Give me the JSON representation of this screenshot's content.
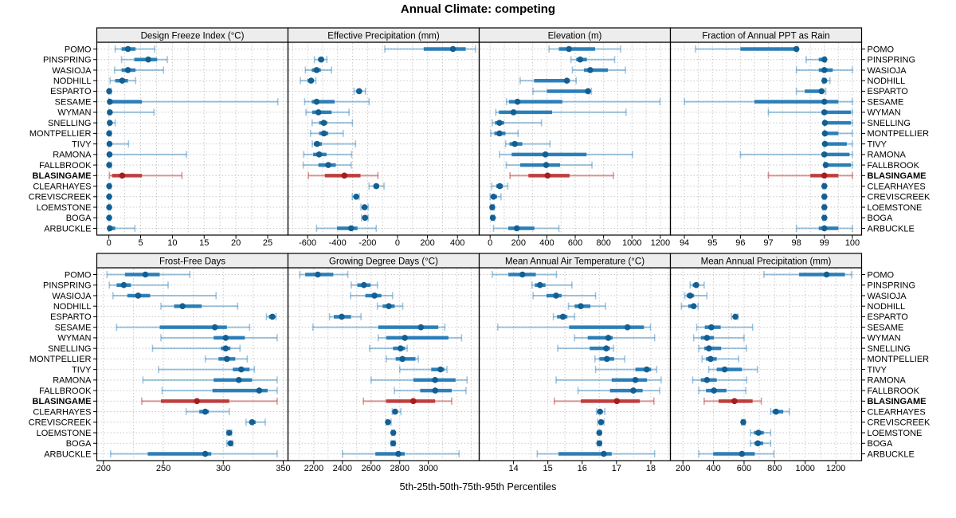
{
  "title": "Annual Climate: competing",
  "xlabel": "5th-25th-50th-75th-95th Percentiles",
  "colors": {
    "series": "#1f77b4",
    "series_dot": "#135f92",
    "series_light": "rgba(31,119,180,0.42)",
    "highlight": "#bb3434",
    "highlight_dot": "#a61d1d",
    "highlight_light": "rgba(187,52,52,0.5)",
    "strip_bg": "#ededed",
    "grid": "#c9c9c9",
    "border": "#000000"
  },
  "chart_data": {
    "type": "trellis-percentile-dotplot",
    "percentiles": [
      "5th",
      "25th",
      "50th",
      "75th",
      "95th"
    ],
    "highlight_site": "BLASINGAME",
    "sites": [
      "POMO",
      "PINSPRING",
      "WASIOJA",
      "NODHILL",
      "ESPARTO",
      "SESAME",
      "WYMAN",
      "SNELLING",
      "MONTPELLIER",
      "TIVY",
      "RAMONA",
      "FALLBROOK",
      "BLASINGAME",
      "CLEARHAYES",
      "CREVISCREEK",
      "LOEMSTONE",
      "BOGA",
      "ARBUCKLE"
    ],
    "panels": [
      {
        "title": "Design Freeze Index (°C)",
        "xlim": [
          -1.9,
          28.2
        ],
        "ticks": [
          0,
          5,
          10,
          15,
          20,
          25
        ],
        "minor_step": 2.5,
        "values": [
          [
            1,
            2,
            3,
            4.2,
            7.2
          ],
          [
            2,
            4,
            6.2,
            7.6,
            9.2
          ],
          [
            0.9,
            2,
            3,
            4.2,
            8.6
          ],
          [
            0.2,
            1,
            2.1,
            3,
            4.2
          ],
          [
            0,
            0,
            0.05,
            0.15,
            0.35
          ],
          [
            0,
            0.05,
            0.15,
            5.2,
            26.6
          ],
          [
            0,
            0.05,
            0.15,
            0.4,
            7.1
          ],
          [
            0,
            0.05,
            0.15,
            0.35,
            1.0
          ],
          [
            0,
            0,
            0.05,
            0.15,
            0.35
          ],
          [
            0,
            0.05,
            0.1,
            0.3,
            3.1
          ],
          [
            0,
            0.05,
            0.1,
            0.4,
            12.2
          ],
          [
            0,
            0,
            0.05,
            0.15,
            0.4
          ],
          [
            0.1,
            0.5,
            2.1,
            5.2,
            11.5
          ],
          [
            0,
            0,
            0.05,
            0.1,
            0.3
          ],
          [
            0,
            0,
            0.05,
            0.1,
            0.25
          ],
          [
            0,
            0,
            0.05,
            0.1,
            0.25
          ],
          [
            0,
            0,
            0.05,
            0.1,
            0.25
          ],
          [
            0,
            0.05,
            0.15,
            1.0,
            4.1
          ]
        ]
      },
      {
        "title": "Effective Precipitation (mm)",
        "xlim": [
          -731,
          545
        ],
        "ticks": [
          -600,
          -400,
          -200,
          0,
          200,
          400
        ],
        "minor_step": 100,
        "values": [
          [
            -85,
            175,
            370,
            455,
            520
          ],
          [
            -555,
            -530,
            -510,
            -490,
            -472
          ],
          [
            -615,
            -572,
            -540,
            -512,
            -440
          ],
          [
            -648,
            -601,
            -577,
            -558,
            -545
          ],
          [
            -290,
            -274,
            -256,
            -239,
            -214
          ],
          [
            -620,
            -572,
            -540,
            -420,
            -190
          ],
          [
            -611,
            -569,
            -528,
            -440,
            -324
          ],
          [
            -570,
            -523,
            -492,
            -469,
            -301
          ],
          [
            -581,
            -523,
            -491,
            -462,
            -363
          ],
          [
            -569,
            -558,
            -537,
            -505,
            -280
          ],
          [
            -626,
            -563,
            -523,
            -474,
            -306
          ],
          [
            -629,
            -528,
            -462,
            -412,
            -309
          ],
          [
            -595,
            -485,
            -355,
            -247,
            -131
          ],
          [
            -190,
            -160,
            -142,
            -123,
            -90
          ],
          [
            -302,
            -285,
            -276,
            -265,
            -256
          ],
          [
            -244,
            -228,
            -220,
            -210,
            -196
          ],
          [
            -240,
            -227,
            -217,
            -207,
            -196
          ],
          [
            -540,
            -404,
            -310,
            -267,
            -142
          ]
        ]
      },
      {
        "title": "Elevation (m)",
        "xlim": [
          -77,
          1271
        ],
        "ticks": [
          0,
          200,
          400,
          600,
          800,
          1000,
          1200
        ],
        "minor_step": 100,
        "values": [
          [
            415,
            485,
            556,
            740,
            920
          ],
          [
            570,
            607,
            635,
            682,
            878
          ],
          [
            580,
            662,
            706,
            830,
            954
          ],
          [
            212,
            310,
            541,
            562,
            607
          ],
          [
            302,
            400,
            690,
            701,
            714
          ],
          [
            115,
            133,
            193,
            509,
            1198
          ],
          [
            40,
            62,
            165,
            437,
            958
          ],
          [
            15,
            34,
            66,
            99,
            362
          ],
          [
            5,
            30,
            66,
            108,
            197
          ],
          [
            109,
            137,
            174,
            227,
            422
          ],
          [
            66,
            152,
            390,
            680,
            1003
          ],
          [
            114,
            212,
            395,
            493,
            718
          ],
          [
            140,
            270,
            405,
            560,
            869
          ],
          [
            11,
            43,
            68,
            90,
            124
          ],
          [
            0,
            6,
            24,
            49,
            77
          ],
          [
            5,
            10,
            15,
            20,
            28
          ],
          [
            8,
            14,
            19,
            24,
            30
          ],
          [
            24,
            128,
            188,
            312,
            485
          ]
        ]
      },
      {
        "title": "Fraction of Annual PPT as Rain",
        "xlim": [
          93.5,
          100.33
        ],
        "ticks": [
          94,
          95,
          96,
          97,
          98,
          99,
          100
        ],
        "minor_step": 0.5,
        "values": [
          [
            94.4,
            96,
            98,
            98,
            98.05
          ],
          [
            98.35,
            98.8,
            99,
            99,
            99.05
          ],
          [
            98,
            98.8,
            99,
            99.3,
            100
          ],
          [
            98.95,
            99,
            99,
            99.05,
            99.2
          ],
          [
            98,
            98.3,
            98.9,
            99,
            99.05
          ],
          [
            94,
            96.5,
            99,
            99.5,
            100
          ],
          [
            97,
            98.9,
            99,
            99.95,
            100
          ],
          [
            99,
            99,
            99.02,
            99.95,
            100
          ],
          [
            99,
            99,
            99.02,
            99.5,
            100
          ],
          [
            99,
            99,
            99.02,
            99.8,
            100
          ],
          [
            96,
            98.9,
            99,
            99.9,
            100
          ],
          [
            99,
            99,
            99.05,
            99.95,
            100
          ],
          [
            97,
            98.5,
            99,
            99.5,
            100
          ],
          [
            98.95,
            99,
            99,
            99,
            99.05
          ],
          [
            98.95,
            99,
            99,
            99,
            99.05
          ],
          [
            98.95,
            99,
            99,
            99,
            99.05
          ],
          [
            98.95,
            99,
            99,
            99,
            99.05
          ],
          [
            98,
            98.8,
            99,
            99.5,
            100
          ]
        ]
      },
      {
        "title": "Frost-Free Days",
        "xlim": [
          194.5,
          354
        ],
        "ticks": [
          200,
          250,
          300,
          350
        ],
        "minor_step": 25,
        "values": [
          [
            203,
            218,
            235,
            247,
            272
          ],
          [
            205,
            211,
            217,
            223,
            254
          ],
          [
            208,
            220,
            229,
            239,
            294
          ],
          [
            248,
            259,
            266,
            282,
            312
          ],
          [
            336,
            338,
            341,
            343,
            344
          ],
          [
            211,
            247,
            293,
            303,
            322
          ],
          [
            248,
            292,
            302,
            318,
            345
          ],
          [
            241,
            298,
            302,
            306,
            314
          ],
          [
            285,
            296,
            303,
            310,
            320
          ],
          [
            246,
            308,
            315,
            322,
            326
          ],
          [
            233,
            292,
            313,
            324,
            345
          ],
          [
            249,
            291,
            330,
            337,
            345
          ],
          [
            232,
            248,
            278,
            305,
            345
          ],
          [
            269,
            280,
            285,
            288,
            305
          ],
          [
            319,
            322,
            324,
            327,
            335
          ],
          [
            303,
            304,
            305,
            306,
            307
          ],
          [
            303,
            305,
            306,
            307,
            308
          ],
          [
            206,
            237,
            285,
            290,
            345
          ]
        ]
      },
      {
        "title": "Growing Degree Days (°C)",
        "xlim": [
          2020,
          3355
        ],
        "ticks": [
          2200,
          2400,
          2600,
          2800,
          3000
        ],
        "minor_step": 100,
        "values": [
          [
            2103,
            2140,
            2228,
            2336,
            2438
          ],
          [
            2462,
            2504,
            2550,
            2597,
            2644
          ],
          [
            2457,
            2560,
            2624,
            2672,
            2750
          ],
          [
            2644,
            2681,
            2724,
            2765,
            2821
          ],
          [
            2310,
            2340,
            2395,
            2460,
            2530
          ],
          [
            2194,
            2650,
            2948,
            3069,
            3115
          ],
          [
            2650,
            2706,
            2836,
            3140,
            3232
          ],
          [
            2590,
            2753,
            2806,
            2838,
            2852
          ],
          [
            2706,
            2772,
            2819,
            2910,
            2930
          ],
          [
            2800,
            3020,
            3085,
            3112,
            3130
          ],
          [
            2600,
            2895,
            3047,
            3190,
            3270
          ],
          [
            2763,
            2943,
            3048,
            3163,
            3263
          ],
          [
            2547,
            2705,
            2895,
            3047,
            3163
          ],
          [
            2748,
            2757,
            2768,
            2780,
            2808
          ],
          [
            2705,
            2712,
            2718,
            2727,
            2740
          ],
          [
            2745,
            2750,
            2755,
            2760,
            2765
          ],
          [
            2740,
            2748,
            2754,
            2760,
            2768
          ],
          [
            2400,
            2630,
            2790,
            2835,
            3215
          ]
        ]
      },
      {
        "title": "Mean Annual Air Temperature (°C)",
        "xlim": [
          13.0,
          18.57
        ],
        "ticks": [
          14,
          15,
          16,
          17,
          18
        ],
        "minor_step": 0.5,
        "values": [
          [
            13.38,
            13.85,
            14.26,
            14.65,
            15.25
          ],
          [
            14.54,
            14.62,
            14.77,
            14.93,
            15.7
          ],
          [
            14.57,
            14.96,
            15.24,
            15.4,
            16.39
          ],
          [
            15.6,
            15.78,
            15.96,
            16.24,
            16.68
          ],
          [
            15.16,
            15.27,
            15.44,
            15.57,
            15.78
          ],
          [
            13.54,
            15.62,
            17.32,
            17.8,
            17.99
          ],
          [
            15.78,
            16.16,
            16.76,
            16.89,
            18.11
          ],
          [
            15.29,
            16.22,
            16.7,
            16.81,
            16.91
          ],
          [
            16.37,
            16.5,
            16.72,
            16.93,
            17.24
          ],
          [
            16.39,
            17.55,
            17.88,
            18.01,
            18.17
          ],
          [
            15.24,
            16.86,
            17.55,
            17.89,
            18.3
          ],
          [
            15.88,
            16.81,
            17.49,
            17.76,
            18.26
          ],
          [
            15.19,
            15.96,
            17.01,
            17.68,
            18.09
          ],
          [
            16.42,
            16.47,
            16.52,
            16.58,
            16.66
          ],
          [
            16.45,
            16.5,
            16.55,
            16.6,
            16.64
          ],
          [
            16.46,
            16.48,
            16.5,
            16.52,
            16.55
          ],
          [
            16.45,
            16.48,
            16.5,
            16.53,
            16.56
          ],
          [
            14.69,
            15.31,
            16.63,
            16.86,
            18.11
          ]
        ]
      },
      {
        "title": "Mean Annual Precipitation (mm)",
        "xlim": [
          118,
          1369
        ],
        "ticks": [
          200,
          400,
          600,
          800,
          1000,
          1200
        ],
        "minor_step": 100,
        "values": [
          [
            730,
            960,
            1140,
            1260,
            1305
          ],
          [
            247,
            264,
            287,
            304,
            339
          ],
          [
            212,
            224,
            247,
            273,
            357
          ],
          [
            190,
            235,
            270,
            287,
            299
          ],
          [
            517,
            530,
            543,
            552,
            560
          ],
          [
            290,
            343,
            386,
            447,
            656
          ],
          [
            270,
            317,
            357,
            403,
            600
          ],
          [
            304,
            340,
            370,
            450,
            615
          ],
          [
            325,
            351,
            381,
            421,
            565
          ],
          [
            369,
            421,
            473,
            586,
            687
          ],
          [
            264,
            317,
            357,
            421,
            617
          ],
          [
            304,
            351,
            403,
            485,
            612
          ],
          [
            339,
            433,
            537,
            656,
            713
          ],
          [
            774,
            786,
            809,
            856,
            896
          ],
          [
            583,
            590,
            595,
            600,
            607
          ],
          [
            642,
            664,
            694,
            729,
            774
          ],
          [
            642,
            668,
            690,
            725,
            774
          ],
          [
            304,
            398,
            586,
            670,
            795
          ]
        ]
      }
    ]
  }
}
